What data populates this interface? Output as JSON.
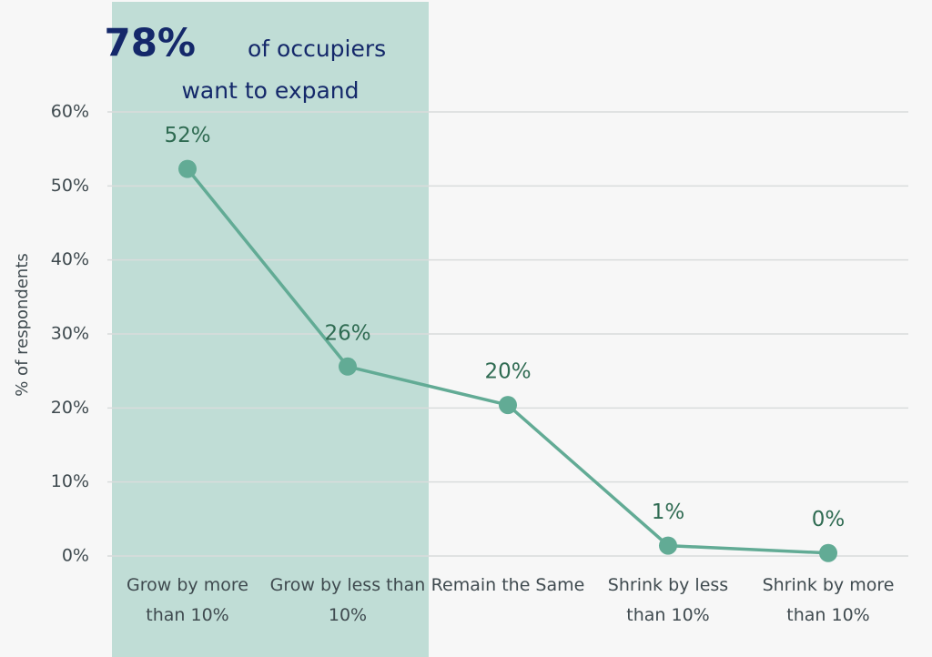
{
  "chart_data": {
    "type": "line",
    "annotation": {
      "highlight": "78%",
      "lines": [
        "of occupiers",
        "want to expand"
      ]
    },
    "y_label": "% of respondents",
    "categories": [
      "Grow by more than 10%",
      "Grow by less than 10%",
      "Remain the Same",
      "Shrink by less than 10%",
      "Shrink by more than 10%"
    ],
    "series": [
      {
        "color": "#62ab95",
        "values": [
          52.3,
          25.6,
          20.4,
          1.4,
          0.4
        ],
        "value_labels": [
          "52%",
          "26%",
          "20%",
          "1%",
          "0%"
        ]
      }
    ],
    "ylim": [
      0,
      60
    ],
    "yticks": [
      {
        "value": 0,
        "label": "0%"
      },
      {
        "value": 10,
        "label": "10%"
      },
      {
        "value": 20,
        "label": "20%"
      },
      {
        "value": 30,
        "label": "30%"
      },
      {
        "value": 40,
        "label": "40%"
      },
      {
        "value": 50,
        "label": "50%"
      },
      {
        "value": 60,
        "label": "60%"
      }
    ],
    "grid": true
  }
}
